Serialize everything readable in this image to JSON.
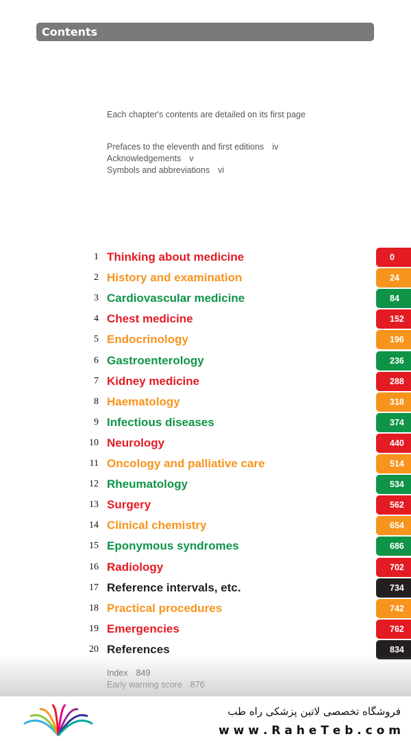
{
  "header": {
    "title": "Contents"
  },
  "intro": "Each chapter's contents are detailed on its first page",
  "front_matter": [
    {
      "title": "Prefaces to the eleventh and first editions",
      "page": "iv"
    },
    {
      "title": "Acknowledgements",
      "page": "v"
    },
    {
      "title": "Symbols and abbreviations",
      "page": "vi"
    }
  ],
  "chapters": [
    {
      "number": "1",
      "title": "Thinking about medicine",
      "page": "0",
      "color": "#e31b23"
    },
    {
      "number": "2",
      "title": "History and examination",
      "page": "24",
      "color": "#f7941d"
    },
    {
      "number": "3",
      "title": "Cardiovascular medicine",
      "page": "84",
      "color": "#0f9447"
    },
    {
      "number": "4",
      "title": "Chest medicine",
      "page": "152",
      "color": "#e31b23"
    },
    {
      "number": "5",
      "title": "Endocrinology",
      "page": "196",
      "color": "#f7941d"
    },
    {
      "number": "6",
      "title": "Gastroenterology",
      "page": "236",
      "color": "#0f9447"
    },
    {
      "number": "7",
      "title": "Kidney medicine",
      "page": "288",
      "color": "#e31b23"
    },
    {
      "number": "8",
      "title": "Haematology",
      "page": "318",
      "color": "#f7941d"
    },
    {
      "number": "9",
      "title": "Infectious diseases",
      "page": "374",
      "color": "#0f9447"
    },
    {
      "number": "10",
      "title": "Neurology",
      "page": "440",
      "color": "#e31b23"
    },
    {
      "number": "11",
      "title": "Oncology and palliative care",
      "page": "514",
      "color": "#f7941d"
    },
    {
      "number": "12",
      "title": "Rheumatology",
      "page": "534",
      "color": "#0f9447"
    },
    {
      "number": "13",
      "title": "Surgery",
      "page": "562",
      "color": "#e31b23"
    },
    {
      "number": "14",
      "title": "Clinical chemistry",
      "page": "654",
      "color": "#f7941d"
    },
    {
      "number": "15",
      "title": "Eponymous syndromes",
      "page": "686",
      "color": "#0f9447"
    },
    {
      "number": "16",
      "title": "Radiology",
      "page": "702",
      "color": "#e31b23"
    },
    {
      "number": "17",
      "title": "Reference intervals, etc.",
      "page": "734",
      "color": "#231f20"
    },
    {
      "number": "18",
      "title": "Practical procedures",
      "page": "742",
      "color": "#f7941d"
    },
    {
      "number": "19",
      "title": "Emergencies",
      "page": "762",
      "color": "#e31b23"
    },
    {
      "number": "20",
      "title": "References",
      "page": "834",
      "color": "#231f20"
    }
  ],
  "back_matter": [
    {
      "title": "Index",
      "page": "849"
    },
    {
      "title": "Early warning score",
      "page": "876"
    }
  ],
  "footer": {
    "shop": "فروشگاه تخصصی لاتین پزشکی  راه طب",
    "url": "w w w . R a h e T e b . c o m"
  }
}
